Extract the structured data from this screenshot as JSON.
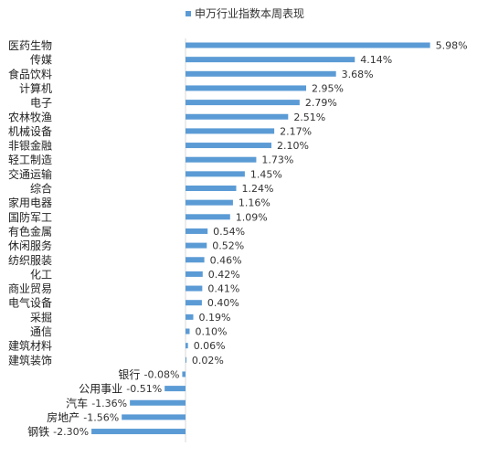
{
  "chart_data": {
    "type": "bar",
    "orientation": "horizontal",
    "series": [
      {
        "name": "申万行业指数本周表现",
        "color": "#5B9BD5",
        "categories": [
          "医药生物",
          "传媒",
          "食品饮料",
          "计算机",
          "电子",
          "农林牧渔",
          "机械设备",
          "非银金融",
          "轻工制造",
          "交通运输",
          "综合",
          "家用电器",
          "国防军工",
          "有色金属",
          "休闲服务",
          "纺织服装",
          "化工",
          "商业贸易",
          "电气设备",
          "采掘",
          "通信",
          "建筑材料",
          "建筑装饰",
          "银行",
          "公用事业",
          "汽车",
          "房地产",
          "钢铁"
        ],
        "values": [
          5.98,
          4.14,
          3.68,
          2.95,
          2.79,
          2.51,
          2.17,
          2.1,
          1.73,
          1.45,
          1.24,
          1.16,
          1.09,
          0.54,
          0.52,
          0.46,
          0.42,
          0.41,
          0.4,
          0.19,
          0.1,
          0.06,
          0.02,
          -0.08,
          -0.51,
          -1.36,
          -1.56,
          -2.3
        ],
        "labels": [
          "5.98%",
          "4.14%",
          "3.68%",
          "2.95%",
          "2.79%",
          "2.51%",
          "2.17%",
          "2.10%",
          "1.73%",
          "1.45%",
          "1.24%",
          "1.16%",
          "1.09%",
          "0.54%",
          "0.52%",
          "0.46%",
          "0.42%",
          "0.41%",
          "0.40%",
          "0.19%",
          "0.10%",
          "0.06%",
          "0.02%",
          "-0.08%",
          "-0.51%",
          "-1.36%",
          "-1.56%",
          "-2.30%"
        ]
      }
    ],
    "legend_position": "top",
    "grid": false
  }
}
